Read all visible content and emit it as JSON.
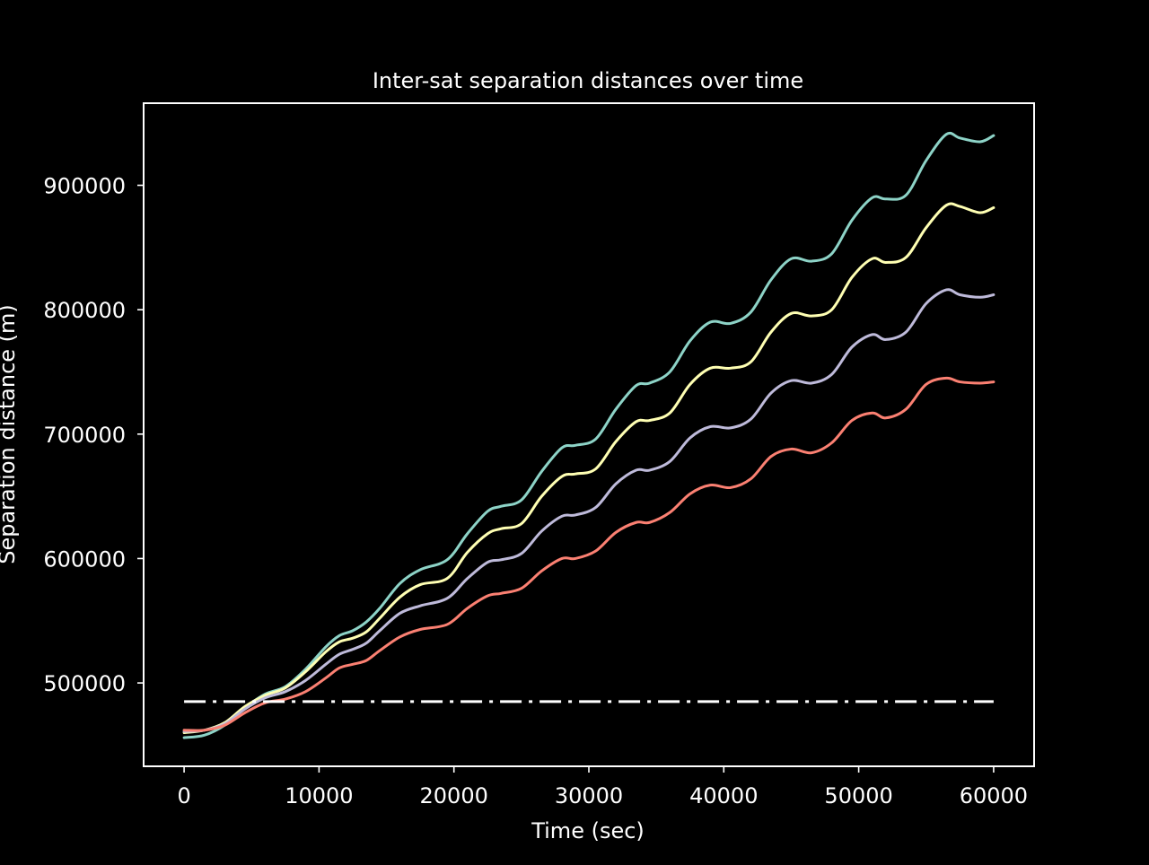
{
  "chart_data": {
    "type": "line",
    "title": "Inter-sat separation distances over time",
    "xlabel": "Time (sec)",
    "ylabel": "Separation distance (m)",
    "xlim": [
      -3000,
      63000
    ],
    "ylim": [
      433000,
      966000
    ],
    "xticks": [
      0,
      10000,
      20000,
      30000,
      40000,
      50000,
      60000
    ],
    "xtick_labels": [
      "0",
      "10000",
      "20000",
      "30000",
      "40000",
      "50000",
      "60000"
    ],
    "yticks": [
      500000,
      600000,
      700000,
      800000,
      900000
    ],
    "ytick_labels": [
      "500000",
      "600000",
      "700000",
      "800000",
      "900000"
    ],
    "grid": false,
    "legend": "none",
    "background": "#000000",
    "series": [
      {
        "color": "#8dd3c7",
        "x": [
          0,
          1500,
          3000,
          4500,
          6000,
          7500,
          9000,
          10500,
          11500,
          12500,
          13500,
          14500,
          16000,
          17500,
          19500,
          21000,
          22500,
          23500,
          25000,
          26500,
          28000,
          29000,
          30500,
          32000,
          33500,
          34500,
          36000,
          37500,
          39000,
          40500,
          42000,
          43500,
          45000,
          46500,
          48000,
          49500,
          51000,
          52000,
          53500,
          55000,
          56500,
          57500,
          59000,
          60000
        ],
        "y": [
          456000,
          458000,
          466000,
          480000,
          491000,
          497000,
          511000,
          529000,
          538000,
          542000,
          549000,
          560000,
          580000,
          591000,
          599000,
          620000,
          638000,
          642000,
          647000,
          670000,
          689000,
          691000,
          696000,
          720000,
          739000,
          741000,
          750000,
          775000,
          790000,
          789000,
          798000,
          824000,
          841000,
          839000,
          845000,
          872000,
          890000,
          889000,
          892000,
          920000,
          941000,
          938000,
          935000,
          940000
        ]
      },
      {
        "color": "#ffffb3",
        "x": [
          0,
          1500,
          3000,
          4500,
          6000,
          7500,
          9000,
          10500,
          11500,
          12500,
          13500,
          14500,
          16000,
          17500,
          19500,
          21000,
          22500,
          23500,
          25000,
          26500,
          28000,
          29000,
          30500,
          32000,
          33500,
          34500,
          36000,
          37500,
          39000,
          40500,
          42000,
          43500,
          45000,
          46500,
          48000,
          49500,
          51000,
          52000,
          53500,
          55000,
          56500,
          57500,
          59000,
          60000
        ],
        "y": [
          460000,
          462000,
          468000,
          481000,
          490000,
          496000,
          509000,
          525000,
          533000,
          536000,
          541000,
          552000,
          569000,
          579000,
          584000,
          605000,
          620000,
          624000,
          628000,
          650000,
          666000,
          668000,
          672000,
          694000,
          710000,
          711000,
          717000,
          740000,
          753000,
          753000,
          758000,
          782000,
          797000,
          795000,
          800000,
          826000,
          841000,
          838000,
          842000,
          866000,
          884000,
          883000,
          878000,
          882000
        ]
      },
      {
        "color": "#bebada",
        "x": [
          0,
          1500,
          3000,
          4500,
          6000,
          7500,
          9000,
          10500,
          11500,
          12500,
          13500,
          14500,
          16000,
          17500,
          19500,
          21000,
          22500,
          23500,
          25000,
          26500,
          28000,
          29000,
          30500,
          32000,
          33500,
          34500,
          36000,
          37500,
          39000,
          40500,
          42000,
          43500,
          45000,
          46500,
          48000,
          49500,
          51000,
          52000,
          53500,
          55000,
          56500,
          57500,
          59000,
          60000
        ],
        "y": [
          461000,
          462000,
          467000,
          479000,
          488000,
          493000,
          502000,
          515000,
          523000,
          527000,
          532000,
          542000,
          556000,
          562000,
          568000,
          584000,
          597000,
          599000,
          604000,
          622000,
          634000,
          635000,
          641000,
          660000,
          671000,
          671000,
          678000,
          697000,
          706000,
          705000,
          712000,
          733000,
          743000,
          741000,
          748000,
          770000,
          780000,
          776000,
          782000,
          805000,
          816000,
          812000,
          810000,
          812000
        ]
      },
      {
        "color": "#fb8072",
        "x": [
          0,
          1500,
          3000,
          4500,
          6000,
          7500,
          9000,
          10500,
          11500,
          12500,
          13500,
          14500,
          16000,
          17500,
          19500,
          21000,
          22500,
          23500,
          25000,
          26500,
          28000,
          29000,
          30500,
          32000,
          33500,
          34500,
          36000,
          37500,
          39000,
          40500,
          42000,
          43500,
          45000,
          46500,
          48000,
          49500,
          51000,
          52000,
          53500,
          55000,
          56500,
          57500,
          59000,
          60000
        ],
        "y": [
          462000,
          462000,
          466000,
          476000,
          484000,
          487000,
          493000,
          504000,
          512000,
          515000,
          518000,
          526000,
          537000,
          543000,
          547000,
          560000,
          570000,
          572000,
          576000,
          590000,
          600000,
          600000,
          606000,
          621000,
          629000,
          629000,
          637000,
          652000,
          659000,
          657000,
          664000,
          682000,
          688000,
          685000,
          693000,
          711000,
          717000,
          713000,
          720000,
          740000,
          745000,
          742000,
          741000,
          742000
        ]
      }
    ],
    "reference_line": {
      "y": 485000,
      "x": [
        0,
        60000
      ],
      "color": "#ffffff",
      "style": "dash-dot"
    }
  }
}
